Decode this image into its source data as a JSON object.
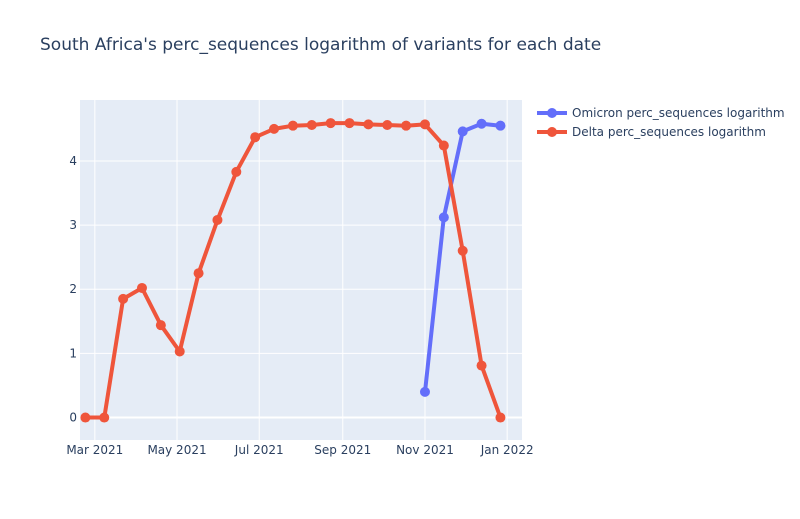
{
  "chart_data": {
    "type": "line",
    "title": "South Africa's perc_sequences logarithm of variants for each date",
    "xlabel": "",
    "ylabel": "",
    "xlim": [
      "2021-02-18",
      "2022-01-12"
    ],
    "ylim": [
      -0.35,
      4.95
    ],
    "x_ticks": [
      {
        "date": "2021-03-01",
        "label": "Mar 2021"
      },
      {
        "date": "2021-05-01",
        "label": "May 2021"
      },
      {
        "date": "2021-07-01",
        "label": "Jul 2021"
      },
      {
        "date": "2021-09-01",
        "label": "Sep 2021"
      },
      {
        "date": "2021-11-01",
        "label": "Nov 2021"
      },
      {
        "date": "2022-01-01",
        "label": "Jan 2022"
      }
    ],
    "y_ticks": [
      0,
      1,
      2,
      3,
      4
    ],
    "grid": true,
    "legend_placement": "top-right",
    "series": [
      {
        "name": "Omicron perc_sequences logarithm",
        "color": "#636efa",
        "x": [
          "2021-11-01",
          "2021-11-15",
          "2021-11-29",
          "2021-12-13",
          "2021-12-27"
        ],
        "y": [
          0.4,
          3.12,
          4.46,
          4.58,
          4.55
        ]
      },
      {
        "name": "Delta perc_sequences logarithm",
        "color": "#ef553b",
        "x": [
          "2021-02-22",
          "2021-03-08",
          "2021-03-22",
          "2021-04-05",
          "2021-04-19",
          "2021-05-03",
          "2021-05-17",
          "2021-05-31",
          "2021-06-14",
          "2021-06-28",
          "2021-07-12",
          "2021-07-26",
          "2021-08-09",
          "2021-08-23",
          "2021-09-06",
          "2021-09-20",
          "2021-10-04",
          "2021-10-18",
          "2021-11-01",
          "2021-11-15",
          "2021-11-29",
          "2021-12-13",
          "2021-12-27"
        ],
        "y": [
          0.0,
          0.0,
          1.85,
          2.02,
          1.44,
          1.03,
          2.25,
          3.08,
          3.83,
          4.37,
          4.5,
          4.55,
          4.56,
          4.59,
          4.59,
          4.57,
          4.56,
          4.55,
          4.57,
          4.24,
          2.6,
          0.81,
          0.0
        ]
      }
    ]
  }
}
